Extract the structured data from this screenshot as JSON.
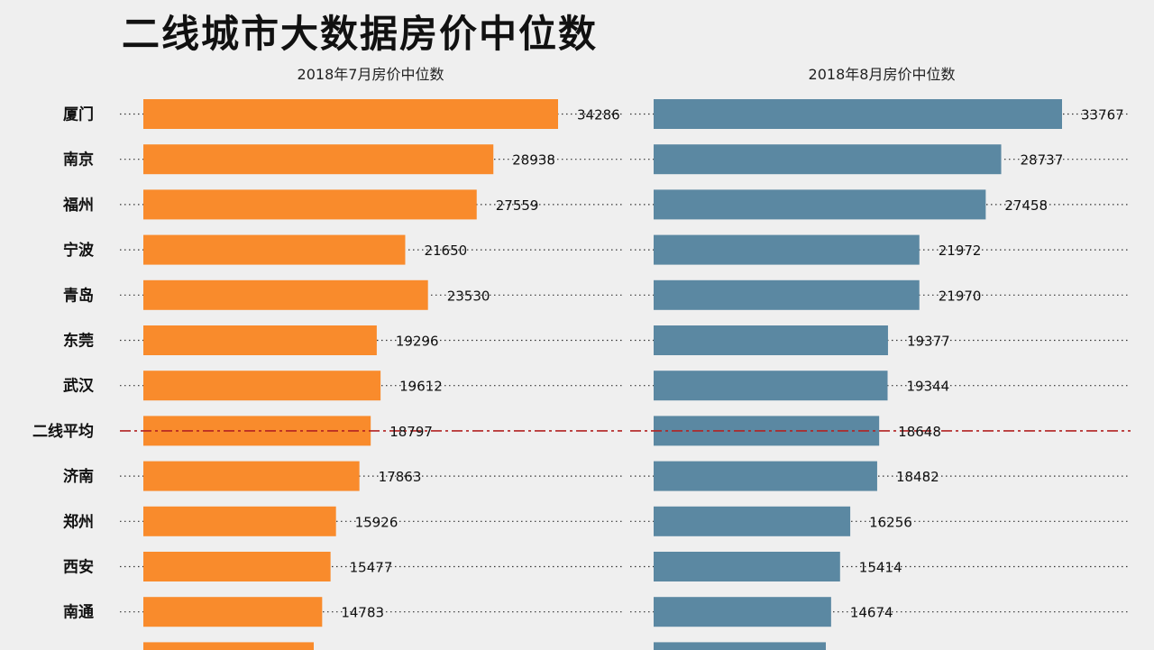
{
  "title": "二线城市大数据房价中位数",
  "chart_data": {
    "type": "bar",
    "orientation": "horizontal",
    "categories": [
      "厦门",
      "南京",
      "福州",
      "宁波",
      "青岛",
      "东莞",
      "武汉",
      "二线平均",
      "济南",
      "郑州",
      "西安",
      "南通"
    ],
    "reference_category": "二线平均",
    "panels": [
      {
        "subtitle": "2018年7月房价中位数",
        "color": "#f98b2c",
        "values": [
          34286,
          28938,
          27559,
          21650,
          23530,
          19296,
          19612,
          18797,
          17863,
          15926,
          15477,
          14783
        ]
      },
      {
        "subtitle": "2018年8月房价中位数",
        "color": "#5b88a2",
        "values": [
          33767,
          28737,
          27458,
          21972,
          21970,
          19377,
          19344,
          18648,
          18482,
          16256,
          15414,
          14674
        ]
      }
    ],
    "reference_line_color": "#b22222",
    "gridlines": "dotted",
    "legend": "none"
  }
}
